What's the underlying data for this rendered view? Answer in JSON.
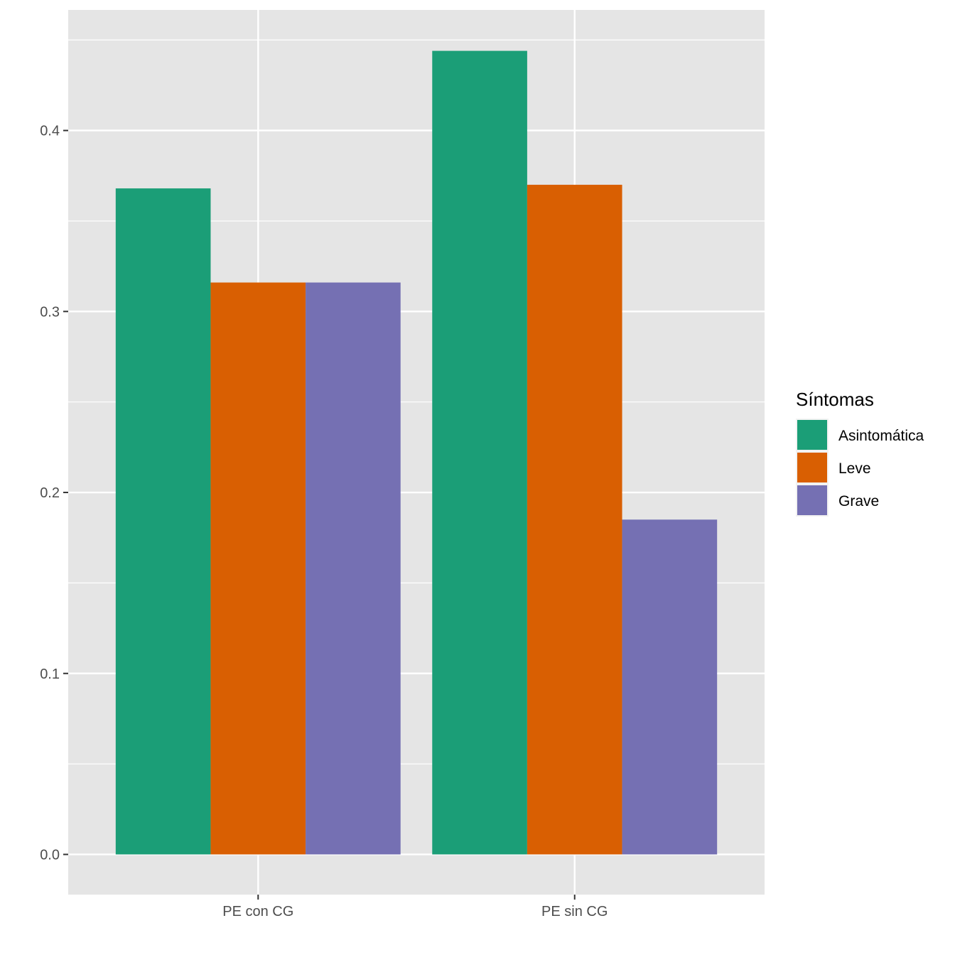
{
  "chart_data": {
    "type": "bar",
    "categories": [
      "PE con CG",
      "PE sin CG"
    ],
    "series": [
      {
        "name": "Asintomática",
        "color": "#1b9e77",
        "values": [
          0.368,
          0.444
        ]
      },
      {
        "name": "Leve",
        "color": "#d95f02",
        "values": [
          0.316,
          0.37
        ]
      },
      {
        "name": "Grave",
        "color": "#7570b3",
        "values": [
          0.316,
          0.185
        ]
      }
    ],
    "title": "",
    "xlabel": "",
    "ylabel": "",
    "ylim": [
      -0.0222,
      0.4666
    ],
    "yticks": [
      0.0,
      0.1,
      0.2,
      0.3,
      0.4
    ],
    "ytick_labels": [
      "0.0",
      "0.1",
      "0.2",
      "0.3",
      "0.4"
    ],
    "grid": true,
    "legend": {
      "title": "Síntomas",
      "position": "right"
    },
    "panel_background": "#e5e5e5"
  }
}
